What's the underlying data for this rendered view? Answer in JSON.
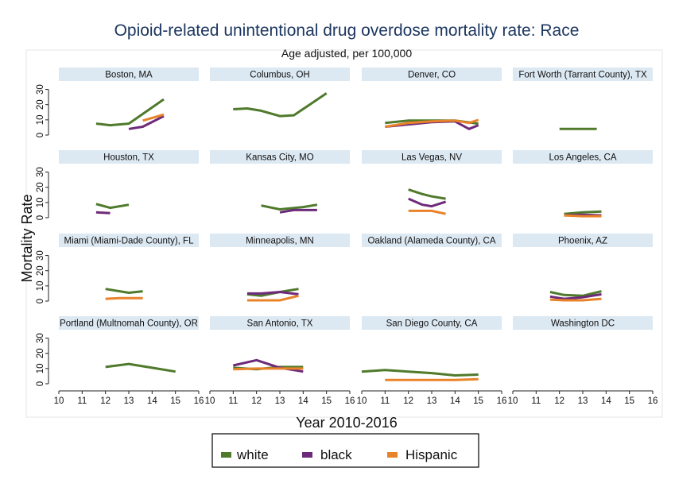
{
  "chart_data": {
    "type": "line",
    "title": "Opioid-related unintentional drug overdose mortality rate: Race",
    "subtitle": "Age adjusted, per 100,000",
    "xlabel": "Year 2010-2016",
    "ylabel": "Mortality Rate",
    "xlim": [
      10,
      16
    ],
    "ylim": [
      0,
      35
    ],
    "x_ticks": [
      10,
      11,
      12,
      13,
      14,
      15,
      16
    ],
    "y_ticks": [
      0,
      10,
      20,
      30
    ],
    "series_names": [
      "white",
      "black",
      "Hispanic"
    ],
    "colors": {
      "white": "#4f7a2c",
      "black": "#6e2a7a",
      "Hispanic": "#e8832a",
      "strip": "#dce8f2",
      "panel_bg": "#ffffff"
    },
    "legend": {
      "position": "bottom",
      "items": [
        "white",
        "black",
        "Hispanic"
      ]
    },
    "panels": [
      {
        "name": "Boston, MA",
        "series": [
          {
            "name": "white",
            "x": [
              11.6,
              12.2,
              13,
              14.5
            ],
            "y": [
              7.5,
              6.5,
              7.5,
              23.5
            ]
          },
          {
            "name": "black",
            "x": [
              13,
              13.6,
              14.5
            ],
            "y": [
              4,
              5.5,
              12.5
            ]
          },
          {
            "name": "Hispanic",
            "x": [
              13.6,
              14.5
            ],
            "y": [
              9.5,
              13.5
            ]
          }
        ]
      },
      {
        "name": "Columbus, OH",
        "series": [
          {
            "name": "white",
            "x": [
              11,
              11.6,
              12.2,
              13,
              13.6,
              15
            ],
            "y": [
              17,
              17.5,
              16,
              12.5,
              13,
              27.5
            ]
          },
          {
            "name": "black",
            "x": [],
            "y": []
          },
          {
            "name": "Hispanic",
            "x": [],
            "y": []
          }
        ]
      },
      {
        "name": "Denver, CO",
        "series": [
          {
            "name": "white",
            "x": [
              11,
              12,
              13,
              14,
              15
            ],
            "y": [
              8,
              9.5,
              9.5,
              9.5,
              7.5
            ]
          },
          {
            "name": "black",
            "x": [
              11,
              12,
              13,
              14,
              14.6,
              15
            ],
            "y": [
              5.5,
              7,
              8.5,
              9,
              4,
              6.5
            ]
          },
          {
            "name": "Hispanic",
            "x": [
              11,
              12,
              13,
              14,
              14.6,
              15
            ],
            "y": [
              5.5,
              8,
              9,
              9.5,
              8,
              10
            ]
          }
        ]
      },
      {
        "name": "Fort Worth (Tarrant County), TX",
        "series": [
          {
            "name": "white",
            "x": [
              12,
              13.6
            ],
            "y": [
              4,
              4
            ]
          },
          {
            "name": "black",
            "x": [],
            "y": []
          },
          {
            "name": "Hispanic",
            "x": [],
            "y": []
          }
        ]
      },
      {
        "name": "Houston, TX",
        "series": [
          {
            "name": "white",
            "x": [
              11.6,
              12.2,
              13
            ],
            "y": [
              9,
              6.5,
              8.5
            ]
          },
          {
            "name": "black",
            "x": [
              11.6,
              12.2
            ],
            "y": [
              3.5,
              3
            ]
          },
          {
            "name": "Hispanic",
            "x": [],
            "y": []
          }
        ]
      },
      {
        "name": "Kansas City, MO",
        "series": [
          {
            "name": "white",
            "x": [
              12.2,
              13,
              14,
              14.6
            ],
            "y": [
              8,
              5.5,
              7,
              8.5
            ]
          },
          {
            "name": "black",
            "x": [
              13,
              13.6,
              14.6
            ],
            "y": [
              3.5,
              5,
              5
            ]
          },
          {
            "name": "Hispanic",
            "x": [],
            "y": []
          }
        ]
      },
      {
        "name": "Las Vegas, NV",
        "series": [
          {
            "name": "white",
            "x": [
              12,
              12.6,
              13,
              13.6
            ],
            "y": [
              18.5,
              15.5,
              14,
              12.5
            ]
          },
          {
            "name": "black",
            "x": [
              12,
              12.6,
              13,
              13.6
            ],
            "y": [
              12.5,
              8.5,
              7.5,
              10.5
            ]
          },
          {
            "name": "Hispanic",
            "x": [
              12,
              13,
              13.6
            ],
            "y": [
              4.5,
              4.5,
              2.5
            ]
          }
        ]
      },
      {
        "name": "Los Angeles, CA",
        "series": [
          {
            "name": "white",
            "x": [
              12.2,
              13,
              13.8
            ],
            "y": [
              2.5,
              3.5,
              4
            ]
          },
          {
            "name": "black",
            "x": [
              12.2,
              13,
              13.8
            ],
            "y": [
              1.5,
              2,
              1.5
            ]
          },
          {
            "name": "Hispanic",
            "x": [
              12.2,
              13,
              13.8
            ],
            "y": [
              1.5,
              1,
              1
            ]
          }
        ]
      },
      {
        "name": "Miami (Miami-Dade County), FL",
        "series": [
          {
            "name": "white",
            "x": [
              12,
              13,
              13.6
            ],
            "y": [
              8,
              5.5,
              6.5
            ]
          },
          {
            "name": "black",
            "x": [],
            "y": []
          },
          {
            "name": "Hispanic",
            "x": [
              12,
              12.6,
              13,
              13.6
            ],
            "y": [
              1.5,
              2,
              2,
              2
            ]
          }
        ]
      },
      {
        "name": "Minneapolis, MN",
        "series": [
          {
            "name": "white",
            "x": [
              11.6,
              12.2,
              13,
              13.8
            ],
            "y": [
              4.5,
              3.5,
              6,
              8
            ]
          },
          {
            "name": "black",
            "x": [
              11.6,
              12.2,
              13,
              13.8
            ],
            "y": [
              5,
              5,
              6,
              4.5
            ]
          },
          {
            "name": "Hispanic",
            "x": [
              11.6,
              12.2,
              13,
              13.8
            ],
            "y": [
              0.5,
              0.5,
              0.5,
              3.5
            ]
          }
        ]
      },
      {
        "name": "Oakland (Alameda County), CA",
        "series": [
          {
            "name": "white",
            "x": [],
            "y": []
          },
          {
            "name": "black",
            "x": [],
            "y": []
          },
          {
            "name": "Hispanic",
            "x": [],
            "y": []
          }
        ]
      },
      {
        "name": "Phoenix, AZ",
        "series": [
          {
            "name": "white",
            "x": [
              11.6,
              12.2,
              13,
              13.8
            ],
            "y": [
              6,
              4,
              3.5,
              6.5
            ]
          },
          {
            "name": "black",
            "x": [
              11.6,
              12.2,
              13,
              13.8
            ],
            "y": [
              3,
              1.5,
              2.5,
              4.5
            ]
          },
          {
            "name": "Hispanic",
            "x": [
              11.6,
              12.2,
              13,
              13.8
            ],
            "y": [
              1,
              0.5,
              0.5,
              1.5
            ]
          }
        ]
      },
      {
        "name": "Portland (Multnomah County), OR",
        "series": [
          {
            "name": "white",
            "x": [
              12,
              13,
              14,
              15
            ],
            "y": [
              11,
              13,
              10.5,
              8
            ]
          },
          {
            "name": "black",
            "x": [],
            "y": []
          },
          {
            "name": "Hispanic",
            "x": [],
            "y": []
          }
        ]
      },
      {
        "name": "San Antonio, TX",
        "series": [
          {
            "name": "white",
            "x": [
              11,
              12,
              13,
              14
            ],
            "y": [
              10.5,
              9.5,
              11,
              11
            ]
          },
          {
            "name": "black",
            "x": [
              11,
              12,
              13,
              14
            ],
            "y": [
              12,
              15.5,
              10.5,
              8
            ]
          },
          {
            "name": "Hispanic",
            "x": [
              11,
              12,
              13,
              14
            ],
            "y": [
              9.5,
              10,
              10,
              10
            ]
          }
        ]
      },
      {
        "name": "San Diego County, CA",
        "series": [
          {
            "name": "white",
            "x": [
              10,
              11,
              12,
              13,
              14,
              15
            ],
            "y": [
              8,
              9,
              8,
              7,
              5.5,
              6
            ]
          },
          {
            "name": "black",
            "x": [],
            "y": []
          },
          {
            "name": "Hispanic",
            "x": [
              11,
              12,
              13,
              14,
              15
            ],
            "y": [
              2.5,
              2.5,
              2.5,
              2.5,
              3
            ]
          }
        ]
      },
      {
        "name": "Washington DC",
        "series": [
          {
            "name": "white",
            "x": [],
            "y": []
          },
          {
            "name": "black",
            "x": [],
            "y": []
          },
          {
            "name": "Hispanic",
            "x": [],
            "y": []
          }
        ]
      }
    ]
  }
}
